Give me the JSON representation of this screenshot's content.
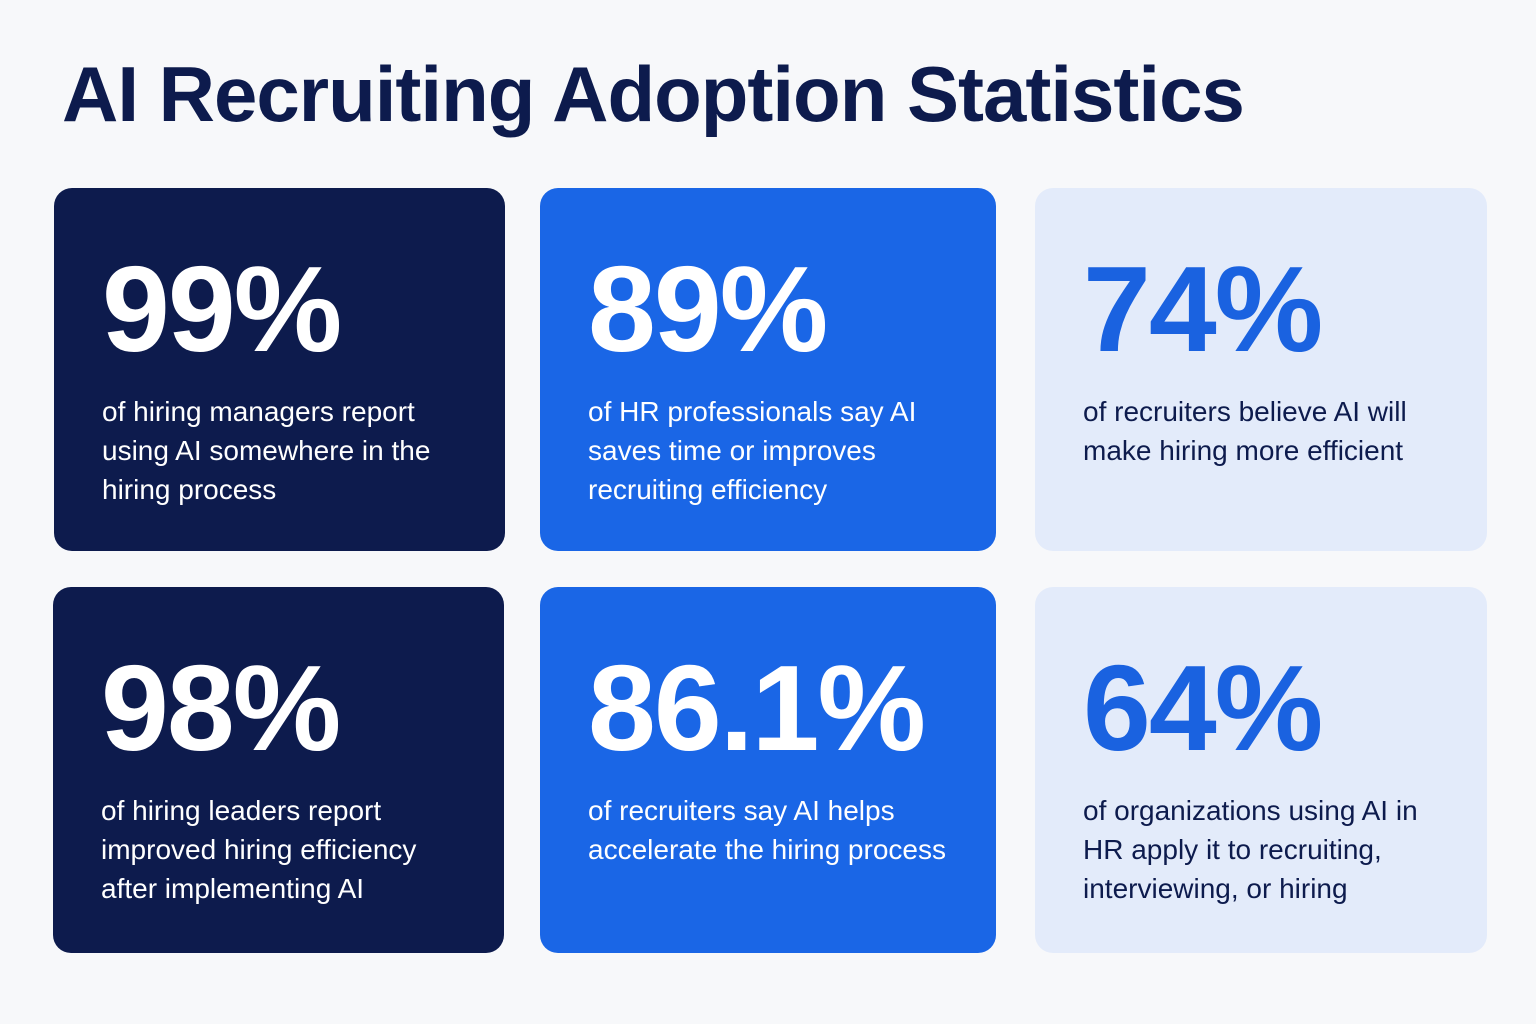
{
  "title": "AI Recruiting Adoption Statistics",
  "colors": {
    "dark_navy": "#0d1b4d",
    "bright_blue": "#1a66e6",
    "light_blue": "#e3ebfa",
    "stat_blue_text": "#1a62e0"
  },
  "stats": [
    {
      "value": "99%",
      "description": "of hiring managers report using AI somewhere in the hiring process",
      "style": "dark"
    },
    {
      "value": "89%",
      "description": "of HR professionals say AI saves time or improves recruiting efficiency",
      "style": "blue"
    },
    {
      "value": "74%",
      "description": "of recruiters believe AI will make hiring more efficient",
      "style": "light"
    },
    {
      "value": "98%",
      "description": "of hiring leaders report improved hiring efficiency after implementing AI",
      "style": "dark"
    },
    {
      "value": "86.1%",
      "description": "of recruiters say AI helps accelerate the hiring process",
      "style": "blue"
    },
    {
      "value": "64%",
      "description": "of organizations using AI in HR apply it to recruiting, interviewing, or hiring",
      "style": "light"
    }
  ]
}
